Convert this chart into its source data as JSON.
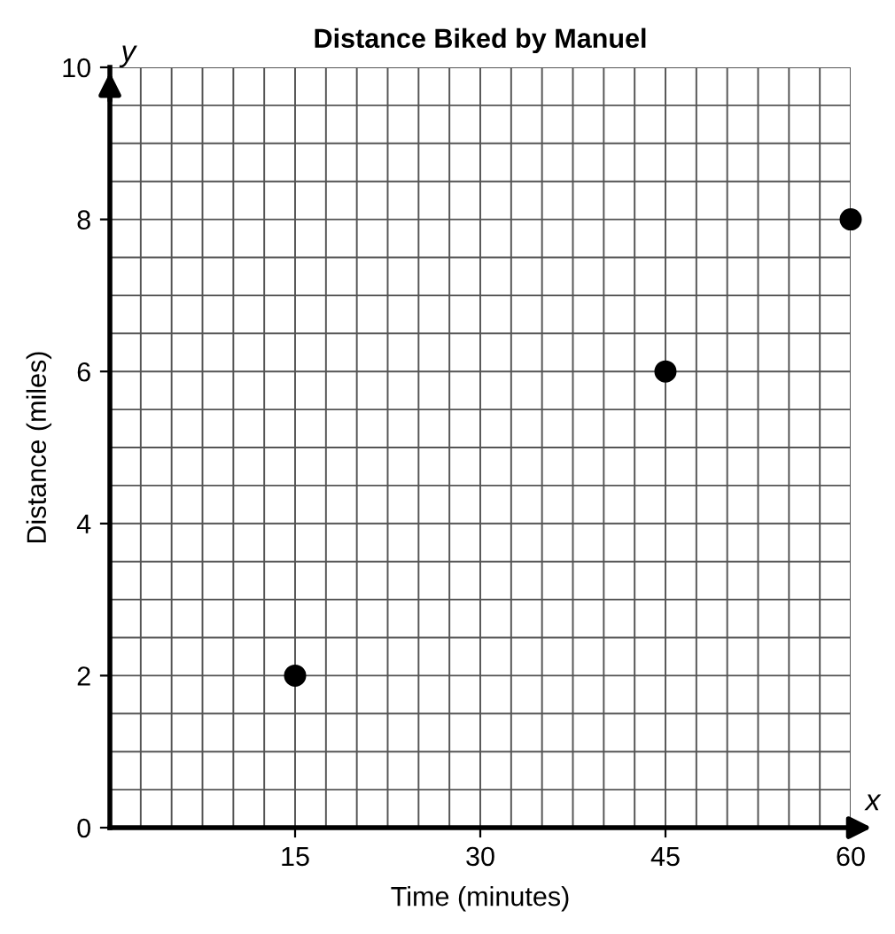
{
  "chart_data": {
    "type": "scatter",
    "title": "Distance Biked by Manuel",
    "xlabel": "Time (minutes)",
    "ylabel": "Distance (miles)",
    "x": [
      15,
      45,
      60
    ],
    "values": [
      2,
      6,
      8
    ],
    "color": "#000000",
    "marker": "circle",
    "xlim": [
      0,
      60
    ],
    "xticks": [
      15,
      30,
      45,
      60
    ],
    "ylim": [
      0,
      10
    ],
    "yticks": [
      0,
      2,
      4,
      6,
      8,
      10
    ],
    "grid": true,
    "annotations": [
      "x",
      "y"
    ]
  }
}
